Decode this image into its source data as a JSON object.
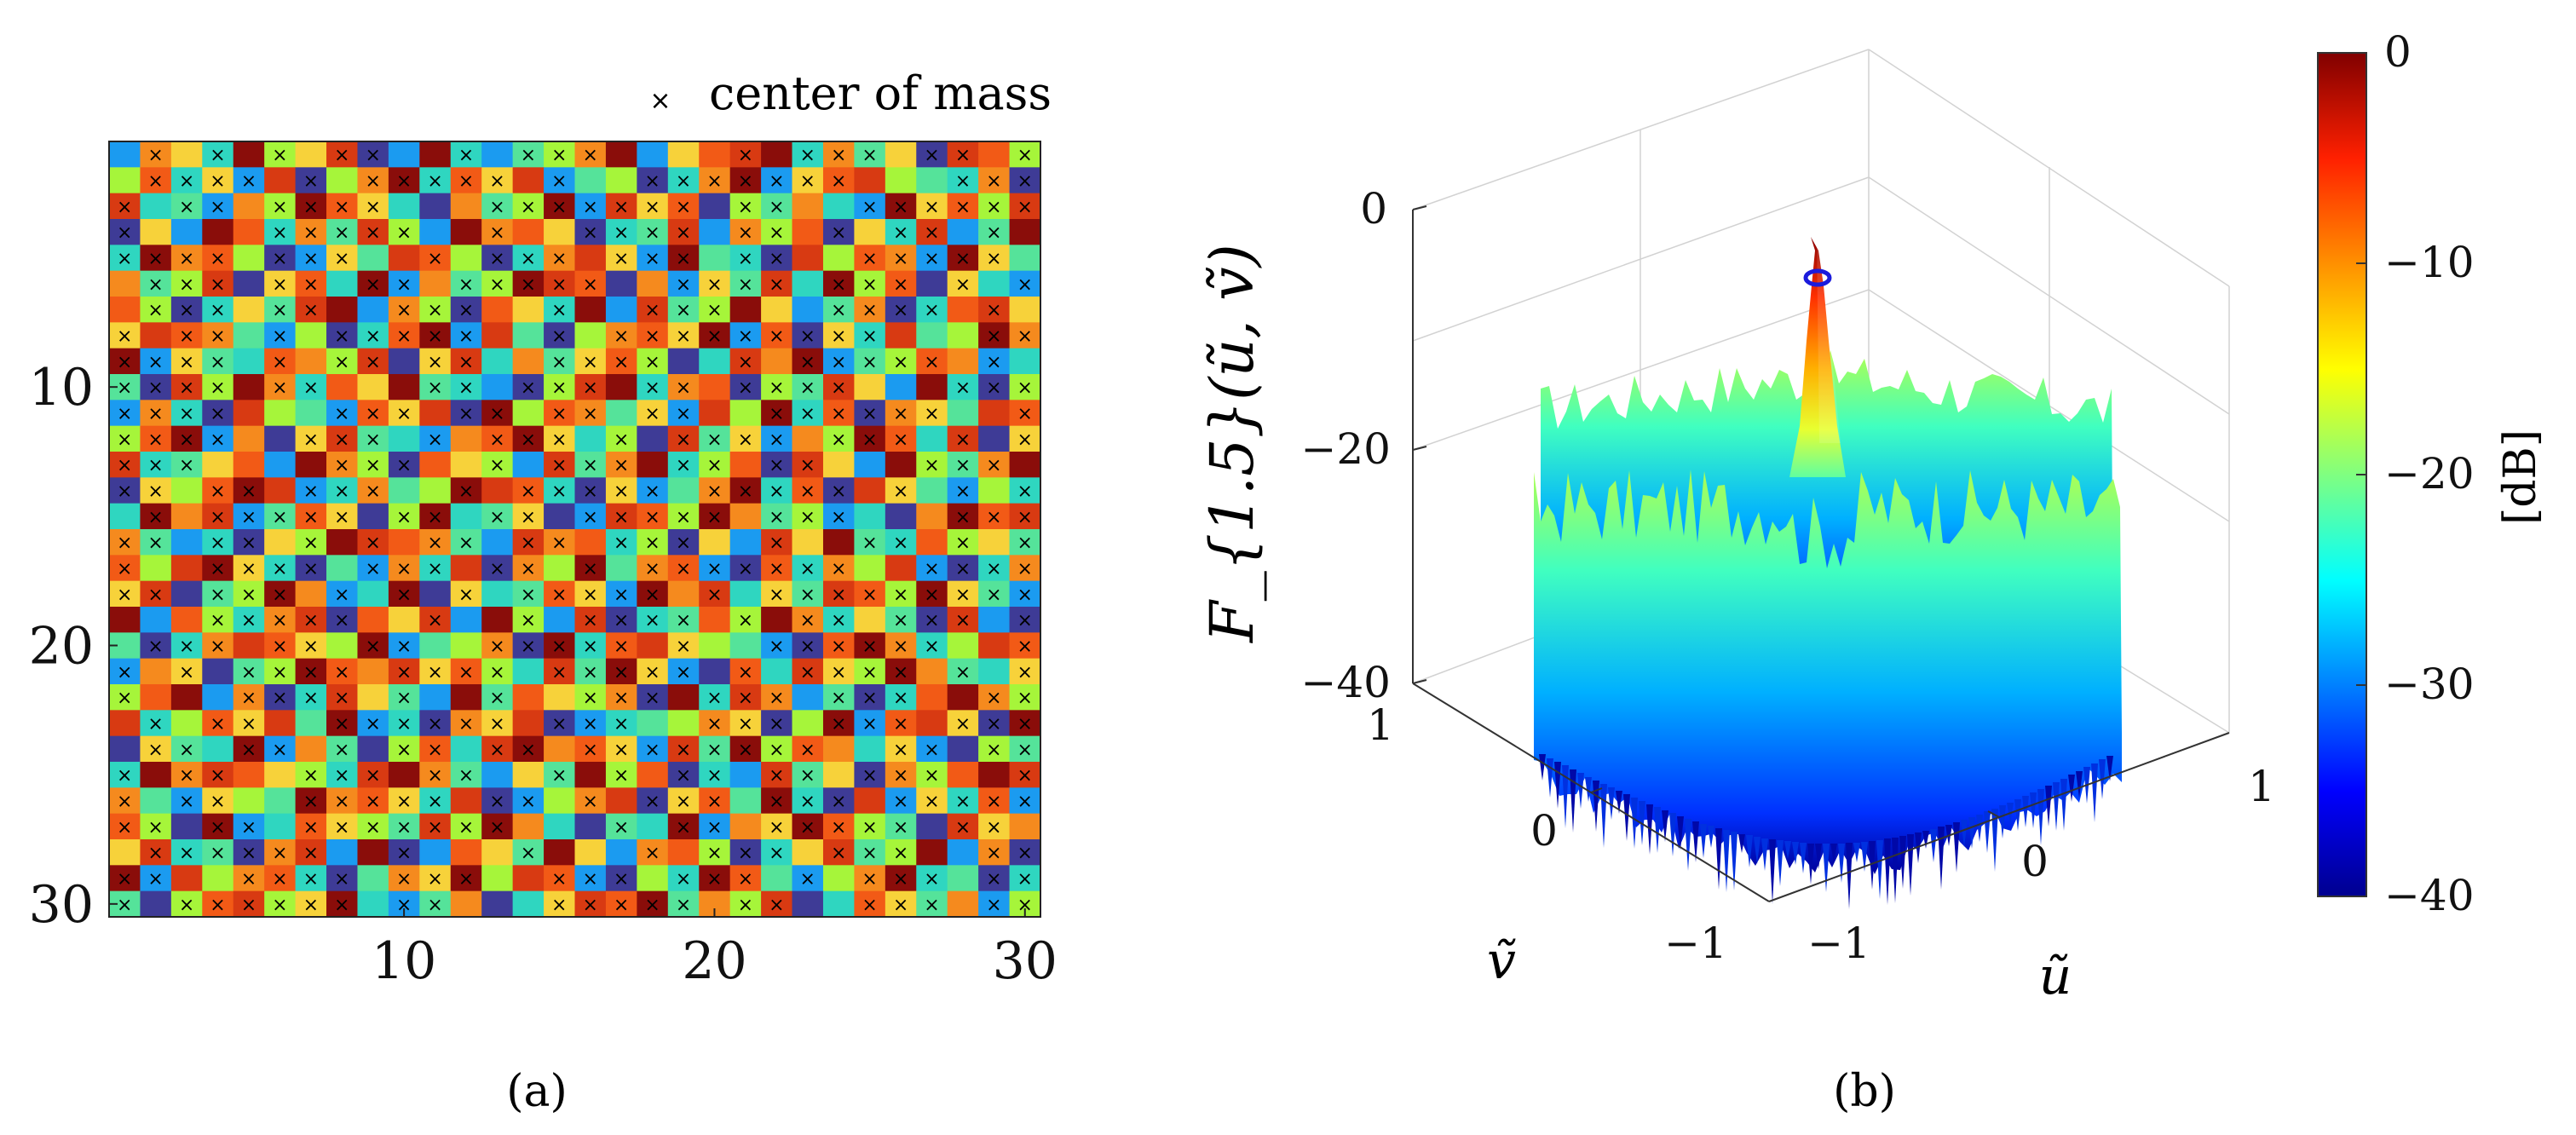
{
  "figure": {
    "caption_a": "(a)",
    "caption_b": "(b)"
  },
  "chart_data": [
    {
      "type": "heatmap",
      "title": "",
      "legend_label": "center of mass",
      "grid_rows": 30,
      "grid_cols": 30,
      "x_ticks": [
        "10",
        "20",
        "30"
      ],
      "y_ticks": [
        "10",
        "20",
        "30"
      ],
      "xlim": [
        0.5,
        30.5
      ],
      "ylim": [
        0.5,
        30.5
      ],
      "marker": "×",
      "cell_colors": [
        "#1b9bf0",
        "#2fd6c0",
        "#a6f53a",
        "#f7d23a",
        "#f58a1e",
        "#d83a12",
        "#8a0d0a",
        "#3e3b96",
        "#55e39a",
        "#f25a16"
      ],
      "cell_indices": [
        [
          0,
          4,
          3,
          1,
          6,
          2,
          3,
          5,
          7,
          0,
          6,
          1,
          0,
          8,
          2,
          4,
          6,
          0,
          3,
          9,
          5,
          6,
          1,
          4,
          8,
          3,
          7,
          5,
          9,
          2
        ],
        [
          2,
          9,
          1,
          3,
          0,
          5,
          7,
          2,
          4,
          6,
          1,
          9,
          3,
          5,
          0,
          8,
          2,
          7,
          1,
          4,
          6,
          0,
          3,
          9,
          5,
          2,
          8,
          1,
          4,
          7
        ],
        [
          5,
          1,
          8,
          0,
          4,
          2,
          6,
          9,
          3,
          1,
          7,
          4,
          8,
          2,
          6,
          0,
          5,
          3,
          9,
          7,
          2,
          8,
          4,
          1,
          0,
          6,
          3,
          9,
          2,
          5
        ],
        [
          7,
          3,
          0,
          6,
          9,
          1,
          4,
          8,
          5,
          2,
          0,
          6,
          4,
          9,
          3,
          7,
          1,
          8,
          5,
          0,
          4,
          2,
          9,
          7,
          3,
          1,
          5,
          0,
          8,
          6
        ],
        [
          1,
          6,
          4,
          9,
          2,
          7,
          0,
          3,
          8,
          5,
          9,
          2,
          7,
          1,
          4,
          5,
          3,
          0,
          6,
          8,
          1,
          7,
          5,
          2,
          9,
          4,
          0,
          6,
          3,
          8
        ],
        [
          4,
          8,
          2,
          5,
          7,
          3,
          9,
          1,
          6,
          0,
          4,
          8,
          2,
          6,
          5,
          9,
          7,
          4,
          0,
          3,
          8,
          5,
          1,
          6,
          2,
          9,
          7,
          3,
          1,
          0
        ],
        [
          9,
          2,
          7,
          1,
          3,
          8,
          5,
          6,
          0,
          4,
          2,
          7,
          9,
          3,
          1,
          6,
          0,
          5,
          8,
          2,
          6,
          3,
          0,
          8,
          4,
          7,
          1,
          9,
          5,
          3
        ],
        [
          3,
          5,
          9,
          4,
          8,
          0,
          2,
          7,
          1,
          9,
          6,
          0,
          5,
          8,
          7,
          2,
          4,
          9,
          3,
          6,
          0,
          9,
          7,
          3,
          1,
          5,
          8,
          2,
          6,
          4
        ],
        [
          6,
          0,
          3,
          8,
          1,
          9,
          4,
          2,
          5,
          7,
          3,
          5,
          1,
          4,
          8,
          3,
          9,
          2,
          7,
          1,
          5,
          4,
          6,
          0,
          8,
          2,
          9,
          4,
          0,
          1
        ],
        [
          8,
          7,
          5,
          2,
          6,
          4,
          1,
          9,
          3,
          6,
          8,
          1,
          0,
          7,
          2,
          5,
          6,
          1,
          4,
          9,
          7,
          2,
          8,
          5,
          3,
          0,
          6,
          1,
          7,
          2
        ],
        [
          0,
          4,
          1,
          7,
          5,
          2,
          8,
          0,
          9,
          3,
          5,
          7,
          6,
          2,
          9,
          4,
          8,
          3,
          0,
          5,
          2,
          6,
          1,
          9,
          7,
          4,
          3,
          8,
          5,
          9
        ],
        [
          2,
          9,
          6,
          0,
          4,
          7,
          3,
          5,
          8,
          1,
          0,
          4,
          9,
          6,
          3,
          1,
          2,
          7,
          5,
          8,
          3,
          0,
          4,
          2,
          6,
          9,
          1,
          5,
          7,
          3
        ],
        [
          5,
          1,
          8,
          3,
          9,
          0,
          6,
          4,
          2,
          7,
          9,
          3,
          2,
          0,
          5,
          8,
          4,
          6,
          1,
          2,
          9,
          7,
          5,
          3,
          0,
          6,
          2,
          8,
          4,
          6
        ],
        [
          7,
          3,
          2,
          9,
          6,
          5,
          0,
          1,
          4,
          8,
          2,
          6,
          5,
          9,
          1,
          7,
          3,
          0,
          8,
          4,
          6,
          1,
          9,
          7,
          5,
          3,
          8,
          0,
          2,
          1
        ],
        [
          1,
          6,
          4,
          5,
          0,
          8,
          9,
          3,
          7,
          2,
          6,
          1,
          8,
          3,
          7,
          0,
          5,
          9,
          2,
          6,
          4,
          8,
          2,
          0,
          1,
          7,
          4,
          6,
          9,
          5
        ],
        [
          4,
          8,
          0,
          1,
          7,
          3,
          2,
          6,
          5,
          9,
          4,
          8,
          0,
          5,
          4,
          9,
          1,
          2,
          7,
          3,
          0,
          5,
          3,
          6,
          8,
          1,
          9,
          2,
          3,
          8
        ],
        [
          9,
          2,
          5,
          6,
          3,
          1,
          7,
          8,
          0,
          4,
          1,
          5,
          7,
          4,
          2,
          6,
          8,
          4,
          9,
          0,
          7,
          9,
          1,
          4,
          2,
          5,
          0,
          7,
          1,
          4
        ],
        [
          3,
          5,
          7,
          8,
          2,
          6,
          4,
          0,
          1,
          6,
          7,
          3,
          1,
          8,
          9,
          3,
          0,
          6,
          4,
          5,
          1,
          3,
          8,
          5,
          9,
          2,
          6,
          3,
          8,
          0
        ],
        [
          6,
          0,
          9,
          2,
          1,
          4,
          5,
          7,
          9,
          3,
          5,
          0,
          6,
          2,
          0,
          5,
          7,
          1,
          8,
          9,
          2,
          6,
          4,
          1,
          3,
          8,
          7,
          5,
          0,
          7
        ],
        [
          8,
          7,
          1,
          4,
          5,
          9,
          3,
          2,
          6,
          0,
          8,
          2,
          4,
          7,
          6,
          1,
          9,
          5,
          3,
          2,
          8,
          0,
          7,
          9,
          6,
          4,
          1,
          2,
          5,
          9
        ],
        [
          0,
          4,
          3,
          7,
          8,
          2,
          6,
          9,
          4,
          5,
          3,
          9,
          2,
          1,
          5,
          8,
          6,
          3,
          0,
          7,
          9,
          1,
          5,
          3,
          2,
          6,
          4,
          8,
          1,
          3
        ],
        [
          2,
          9,
          6,
          0,
          4,
          7,
          1,
          5,
          3,
          8,
          0,
          6,
          8,
          9,
          3,
          2,
          4,
          7,
          6,
          1,
          5,
          4,
          0,
          8,
          7,
          1,
          9,
          6,
          4,
          2
        ],
        [
          5,
          1,
          2,
          9,
          3,
          5,
          8,
          6,
          0,
          1,
          7,
          4,
          3,
          5,
          7,
          0,
          1,
          8,
          2,
          4,
          3,
          7,
          2,
          6,
          0,
          9,
          5,
          3,
          7,
          6
        ],
        [
          7,
          3,
          8,
          1,
          6,
          0,
          4,
          8,
          7,
          2,
          9,
          1,
          5,
          6,
          4,
          9,
          3,
          0,
          5,
          8,
          6,
          2,
          9,
          4,
          1,
          3,
          0,
          7,
          2,
          8
        ],
        [
          1,
          6,
          4,
          5,
          9,
          3,
          2,
          1,
          5,
          6,
          4,
          8,
          0,
          3,
          8,
          6,
          2,
          9,
          7,
          1,
          0,
          5,
          8,
          3,
          7,
          4,
          2,
          9,
          6,
          5
        ],
        [
          4,
          8,
          0,
          3,
          2,
          8,
          6,
          4,
          9,
          3,
          1,
          5,
          7,
          0,
          2,
          4,
          5,
          7,
          3,
          9,
          8,
          6,
          1,
          7,
          5,
          0,
          3,
          1,
          9,
          0
        ],
        [
          9,
          2,
          7,
          6,
          0,
          1,
          9,
          3,
          2,
          8,
          5,
          2,
          6,
          4,
          1,
          7,
          8,
          1,
          6,
          0,
          4,
          3,
          6,
          9,
          2,
          8,
          7,
          5,
          3,
          4
        ],
        [
          3,
          5,
          1,
          8,
          7,
          4,
          5,
          0,
          6,
          7,
          0,
          9,
          3,
          8,
          6,
          3,
          0,
          4,
          9,
          2,
          7,
          1,
          3,
          5,
          8,
          2,
          6,
          0,
          4,
          7
        ],
        [
          6,
          0,
          5,
          2,
          4,
          9,
          1,
          7,
          8,
          4,
          3,
          6,
          2,
          5,
          9,
          0,
          7,
          2,
          1,
          6,
          9,
          8,
          0,
          2,
          4,
          6,
          1,
          8,
          7,
          1
        ],
        [
          8,
          7,
          2,
          9,
          5,
          2,
          3,
          6,
          1,
          0,
          8,
          4,
          7,
          1,
          3,
          5,
          9,
          6,
          8,
          4,
          2,
          5,
          7,
          1,
          9,
          3,
          8,
          4,
          0,
          2
        ]
      ]
    },
    {
      "type": "surface",
      "zlabel": "F_{1.5}(ũ, ṽ)",
      "xlabel": "ũ",
      "ylabel": "ṽ",
      "z_ticks": [
        "0",
        "−20",
        "−40"
      ],
      "u_ticks": [
        "−1",
        "0",
        "1"
      ],
      "v_ticks": [
        "−1",
        "0",
        "1"
      ],
      "zlim": [
        -40,
        0
      ],
      "peak_value_db": 0,
      "sidelobe_level_db": -15,
      "colorbar": {
        "label": "[dB]",
        "ticks": [
          "0",
          "−10",
          "−20",
          "−30",
          "−40"
        ],
        "range": [
          -40,
          0
        ],
        "colormap": [
          "#800000",
          "#ff2000",
          "#ff9000",
          "#ffff00",
          "#80ff80",
          "#00ffff",
          "#0080ff",
          "#0000ff",
          "#00008f"
        ]
      }
    }
  ]
}
